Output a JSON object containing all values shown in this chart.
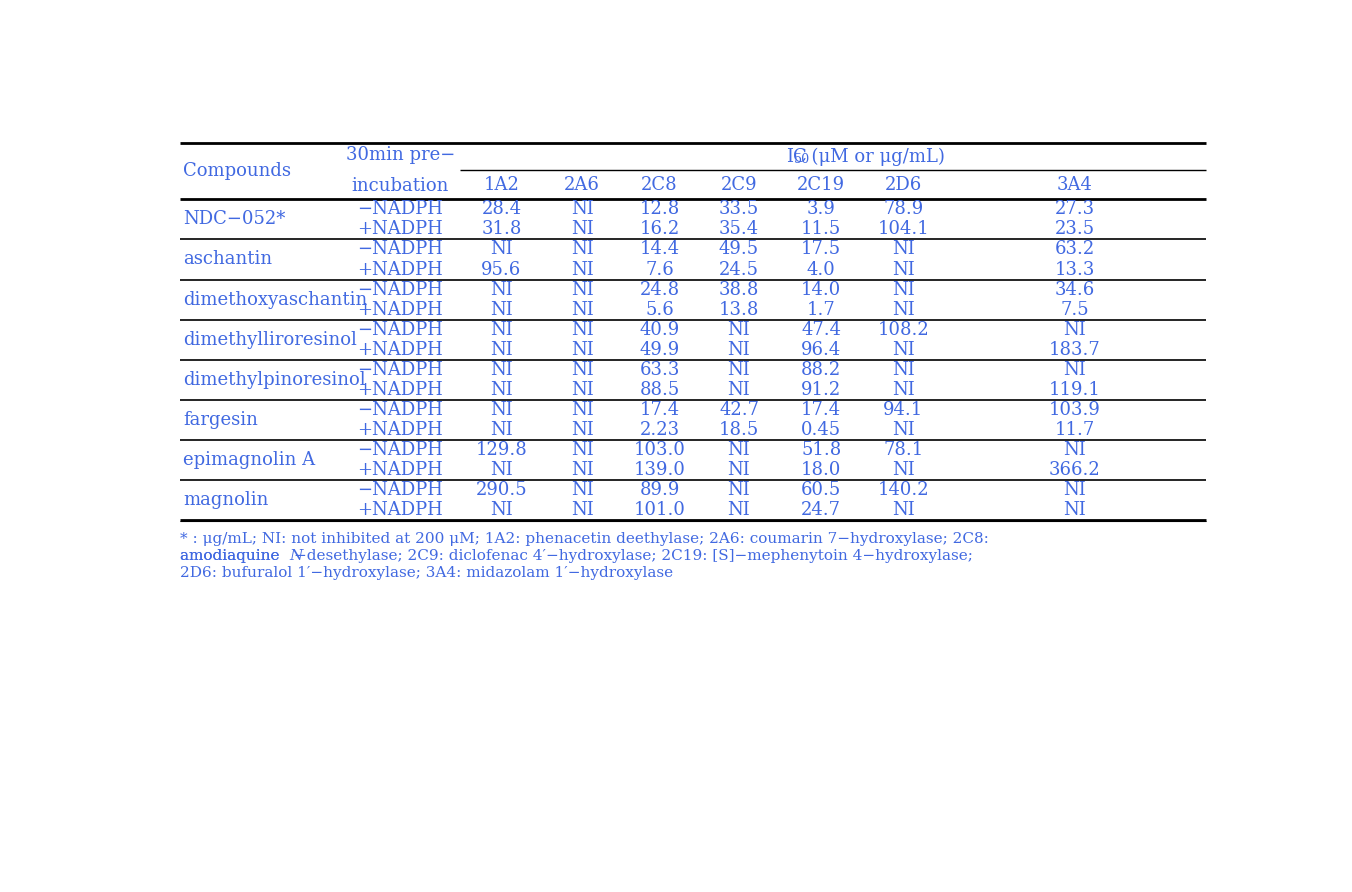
{
  "compounds": [
    "NDC−052*",
    "aschantin",
    "dimethoxyaschantin",
    "dimethylliroresinol",
    "dimethylpinoresinol",
    "fargesin",
    "epimagnolin A",
    "magnolin"
  ],
  "rows": [
    [
      "−NADPH",
      "28.4",
      "NI",
      "12.8",
      "33.5",
      "3.9",
      "78.9",
      "27.3"
    ],
    [
      "+NADPH",
      "31.8",
      "NI",
      "16.2",
      "35.4",
      "11.5",
      "104.1",
      "23.5"
    ],
    [
      "−NADPH",
      "NI",
      "NI",
      "14.4",
      "49.5",
      "17.5",
      "NI",
      "63.2"
    ],
    [
      "+NADPH",
      "95.6",
      "NI",
      "7.6",
      "24.5",
      "4.0",
      "NI",
      "13.3"
    ],
    [
      "−NADPH",
      "NI",
      "NI",
      "24.8",
      "38.8",
      "14.0",
      "NI",
      "34.6"
    ],
    [
      "+NADPH",
      "NI",
      "NI",
      "5.6",
      "13.8",
      "1.7",
      "NI",
      "7.5"
    ],
    [
      "−NADPH",
      "NI",
      "NI",
      "40.9",
      "NI",
      "47.4",
      "108.2",
      "NI"
    ],
    [
      "+NADPH",
      "NI",
      "NI",
      "49.9",
      "NI",
      "96.4",
      "NI",
      "183.7"
    ],
    [
      "−NADPH",
      "NI",
      "NI",
      "63.3",
      "NI",
      "88.2",
      "NI",
      "NI"
    ],
    [
      "+NADPH",
      "NI",
      "NI",
      "88.5",
      "NI",
      "91.2",
      "NI",
      "119.1"
    ],
    [
      "−NADPH",
      "NI",
      "NI",
      "17.4",
      "42.7",
      "17.4",
      "94.1",
      "103.9"
    ],
    [
      "+NADPH",
      "NI",
      "NI",
      "2.23",
      "18.5",
      "0.45",
      "NI",
      "11.7"
    ],
    [
      "−NADPH",
      "129.8",
      "NI",
      "103.0",
      "NI",
      "51.8",
      "78.1",
      "NI"
    ],
    [
      "+NADPH",
      "NI",
      "NI",
      "139.0",
      "NI",
      "18.0",
      "NI",
      "366.2"
    ],
    [
      "−NADPH",
      "290.5",
      "NI",
      "89.9",
      "NI",
      "60.5",
      "140.2",
      "NI"
    ],
    [
      "+NADPH",
      "NI",
      "NI",
      "101.0",
      "NI",
      "24.7",
      "NI",
      "NI"
    ]
  ],
  "cyp_cols": [
    "1A2",
    "2A6",
    "2C8",
    "2C9",
    "2C19",
    "2D6",
    "3A4"
  ],
  "text_color": "#4169E1",
  "line_color": "#000000",
  "bg_color": "#FFFFFF",
  "font_size": 13.0,
  "footnote_size": 11.0,
  "footnote_lines": [
    "* : μg/mL; NI: not inhibited at 200 μM; 1A2: phenacetin deethylase; 2A6: coumarin 7−hydroxylase; 2C8:",
    "amodiaquine  N−desethylase; 2C9: diclofenac 4′−hydroxylase; 2C19: [S]−mephenytoin 4−hydroxylase;",
    "2D6: bufuralol 1′−hydroxylase; 3A4: midazolam 1′−hydroxylase"
  ]
}
